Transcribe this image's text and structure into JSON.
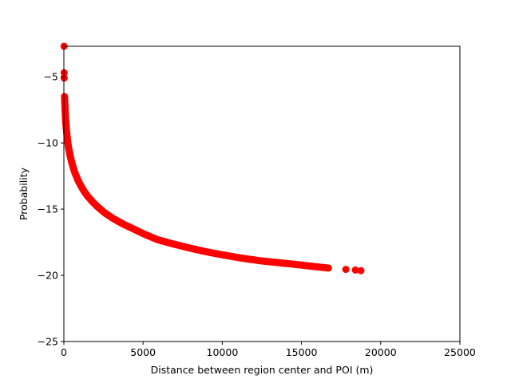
{
  "chart_data": {
    "type": "scatter",
    "title": "",
    "xlabel": "Distance between region center and POI (m)",
    "ylabel": "Probability",
    "xlim": [
      0,
      25000
    ],
    "ylim": [
      -25,
      -2.7
    ],
    "x_ticks": [
      0,
      5000,
      10000,
      15000,
      20000,
      25000
    ],
    "y_ticks": [
      -25,
      -20,
      -15,
      -10,
      -5
    ],
    "grid": false,
    "legend": "none",
    "marker_color": "#ff0000",
    "series": [
      {
        "points": [
          [
            10,
            -2.7
          ],
          [
            15,
            -4.7
          ],
          [
            20,
            -5.1
          ],
          [
            40,
            -6.5
          ],
          [
            60,
            -7.0
          ],
          [
            80,
            -7.6
          ],
          [
            100,
            -8.1
          ],
          [
            130,
            -8.6
          ],
          [
            160,
            -9.0
          ],
          [
            200,
            -9.5
          ],
          [
            250,
            -10.0
          ],
          [
            300,
            -10.4
          ],
          [
            380,
            -10.9
          ],
          [
            460,
            -11.3
          ],
          [
            550,
            -11.7
          ],
          [
            650,
            -12.1
          ],
          [
            780,
            -12.5
          ],
          [
            920,
            -12.9
          ],
          [
            1100,
            -13.3
          ],
          [
            1300,
            -13.7
          ],
          [
            1550,
            -14.1
          ],
          [
            1850,
            -14.5
          ],
          [
            2200,
            -14.9
          ],
          [
            2600,
            -15.3
          ],
          [
            3100,
            -15.7
          ],
          [
            3700,
            -16.1
          ],
          [
            4400,
            -16.5
          ],
          [
            5100,
            -16.9
          ],
          [
            5900,
            -17.3
          ],
          [
            6800,
            -17.6
          ],
          [
            7800,
            -17.9
          ],
          [
            8900,
            -18.2
          ],
          [
            10000,
            -18.45
          ],
          [
            11200,
            -18.7
          ],
          [
            12400,
            -18.9
          ],
          [
            13600,
            -19.05
          ],
          [
            14800,
            -19.2
          ],
          [
            15900,
            -19.35
          ],
          [
            16700,
            -19.45
          ],
          [
            17800,
            -19.55
          ],
          [
            18400,
            -19.6
          ],
          [
            18750,
            -19.65
          ]
        ]
      }
    ]
  }
}
